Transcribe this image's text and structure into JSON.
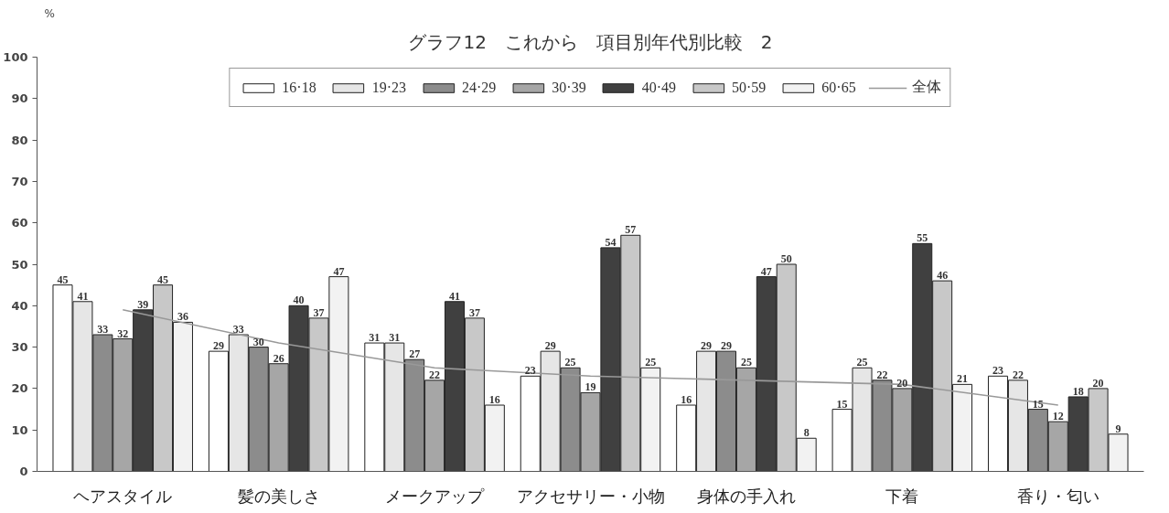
{
  "chart_data": {
    "type": "bar",
    "title": "グラフ12　これから　項目別年代別比較　2",
    "ylabel": "%",
    "categories": [
      "ヘアスタイル",
      "髪の美しさ",
      "メークアップ",
      "アクセサリー・小物",
      "身体の手入れ",
      "下着",
      "香り・匂い"
    ],
    "ylim": [
      0,
      100
    ],
    "yticks": [
      0,
      10,
      20,
      30,
      40,
      50,
      60,
      70,
      80,
      90,
      100
    ],
    "legend": "top",
    "series": [
      {
        "name": "16·18",
        "color": "#ffffff",
        "values": [
          45,
          29,
          31,
          23,
          16,
          15,
          23
        ],
        "value_labels": [
          "45",
          "29",
          "31",
          "23",
          "16",
          "15",
          "23"
        ]
      },
      {
        "name": "19·23",
        "color": "#e6e6e6",
        "values": [
          41,
          33,
          31,
          29,
          29,
          25,
          22
        ],
        "value_labels": [
          "41",
          "33",
          "31",
          "29",
          "29",
          "25",
          "22"
        ]
      },
      {
        "name": "24·29",
        "color": "#8c8c8c",
        "values": [
          33,
          30,
          27,
          25,
          29,
          22,
          15
        ],
        "value_labels": [
          "33",
          "30",
          "27",
          "25",
          "29",
          "22",
          "15"
        ]
      },
      {
        "name": "30·39",
        "color": "#a6a6a6",
        "values": [
          32,
          26,
          22,
          19,
          25,
          20,
          12
        ],
        "value_labels": [
          "32",
          "26",
          "22",
          "19",
          "25",
          "20",
          "12"
        ]
      },
      {
        "name": "40·49",
        "color": "#404040",
        "values": [
          39,
          40,
          41,
          54,
          47,
          55,
          18
        ],
        "value_labels": [
          "39",
          "40",
          "41",
          "54",
          "47",
          "55",
          "18"
        ]
      },
      {
        "name": "50·59",
        "color": "#c8c8c8",
        "values": [
          45,
          37,
          37,
          57,
          50,
          46,
          20
        ],
        "value_labels": [
          "45",
          "37",
          "37",
          "57",
          "50",
          "46",
          "20"
        ]
      },
      {
        "name": "60·65",
        "color": "#f2f2f2",
        "values": [
          36,
          47,
          16,
          25,
          8,
          21,
          9
        ],
        "value_labels": [
          "36",
          "47",
          "16",
          "25",
          "8",
          "21",
          "9"
        ]
      },
      {
        "name": "全体",
        "type": "line",
        "color": "#999999",
        "values": [
          39,
          31,
          25,
          23,
          22,
          21,
          16
        ]
      }
    ]
  }
}
